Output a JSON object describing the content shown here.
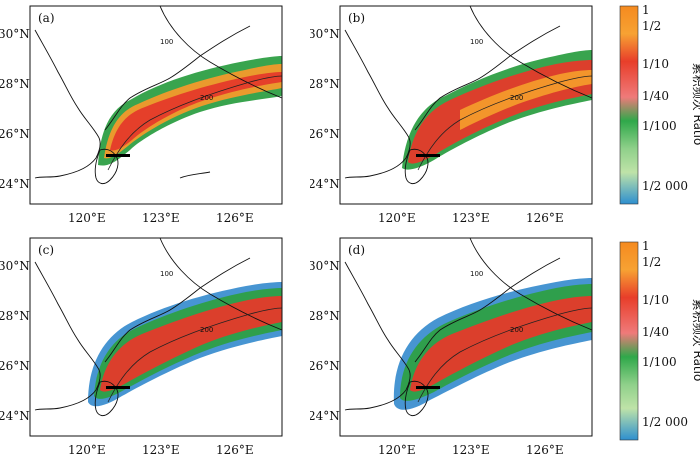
{
  "panels": [
    {
      "label": "(a)",
      "lat_ticks": [
        "30°N",
        "28°N",
        "26°N",
        "24°N"
      ],
      "lon_ticks": [
        "120°E",
        "123°E",
        "126°E"
      ]
    },
    {
      "label": "(b)",
      "lat_ticks": [
        "30°N",
        "28°N",
        "26°N",
        "24°N"
      ],
      "lon_ticks": [
        "120°E",
        "123°E",
        "126°E"
      ]
    },
    {
      "label": "(c)",
      "lat_ticks": [
        "30°N",
        "28°N",
        "26°N",
        "24°N"
      ],
      "lon_ticks": [
        "120°E",
        "123°E",
        "126°E"
      ]
    },
    {
      "label": "(d)",
      "lat_ticks": [
        "30°N",
        "28°N",
        "26°N",
        "24°N"
      ],
      "lon_ticks": [
        "120°E",
        "123°E",
        "126°E"
      ]
    }
  ],
  "isobath_label": "200",
  "isobath_label_100": "100",
  "colorbar": {
    "labels": [
      "1",
      "1/2",
      "1/10",
      "1/40",
      "1/100",
      "1/2 000"
    ],
    "title": "累积频次 Ratio",
    "colors": [
      "#f58a1f",
      "#f7a233",
      "#e83e2a",
      "#ef7a7a",
      "#2fa84a",
      "#8fd08a",
      "#bfe3a8",
      "#2e8fcf"
    ]
  },
  "palette": {
    "orange": "#f39a2b",
    "red": "#e53a2a",
    "pink": "#ee8a86",
    "green": "#2e9f45",
    "lightgreen": "#9fd38d",
    "blue": "#3d8fd0",
    "ocean": "#ffffff",
    "coast": "#111111"
  }
}
